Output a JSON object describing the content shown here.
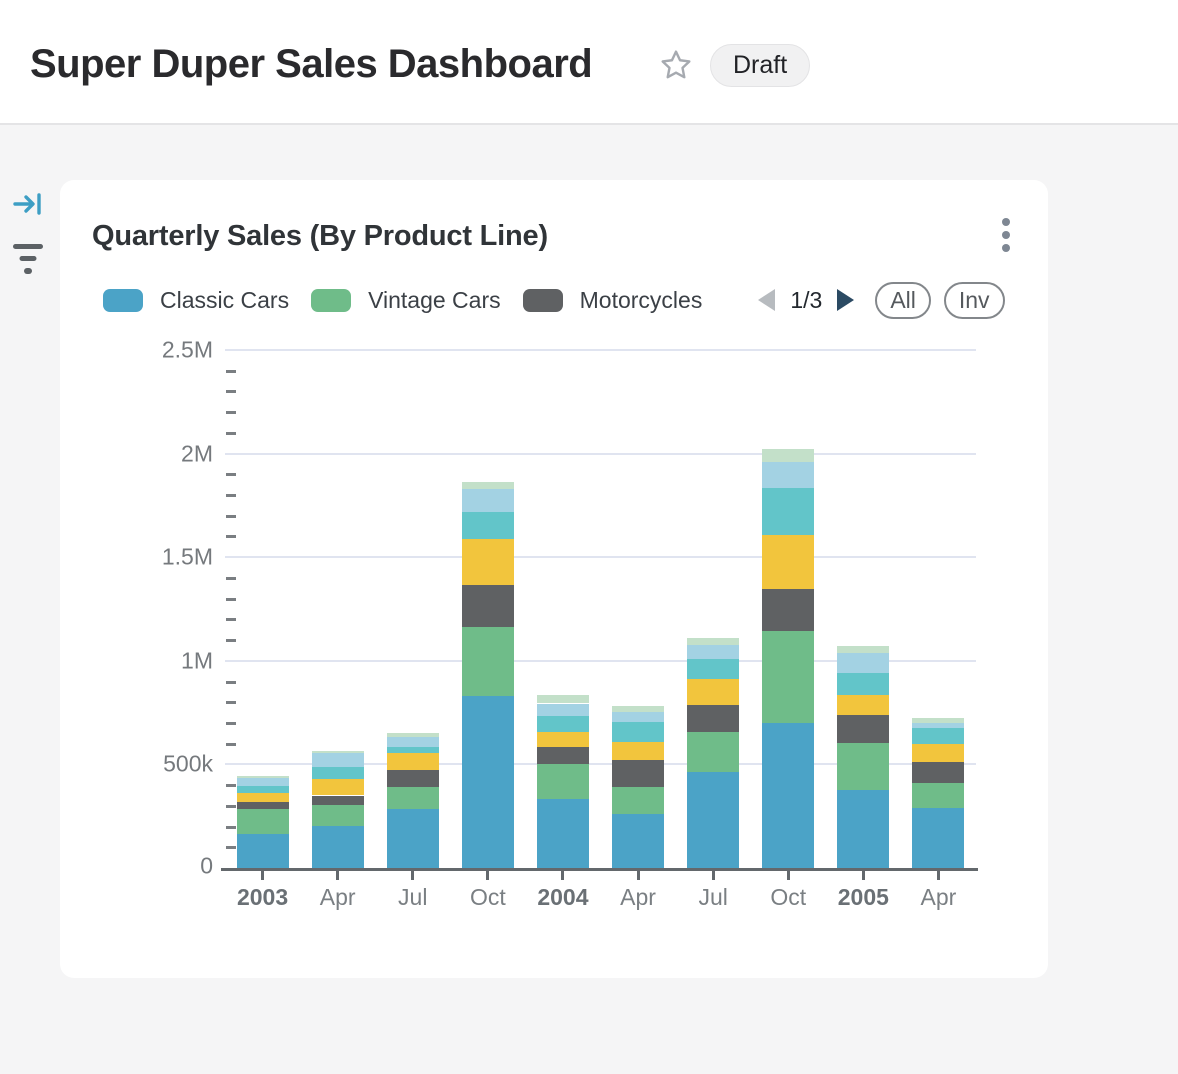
{
  "header": {
    "title": "Super Duper Sales Dashboard",
    "status_badge": "Draft",
    "favorite_icon": "star-outline"
  },
  "rail": {
    "collapse_icon": "arrow-to-bar",
    "filter_icon": "filter-lines"
  },
  "card": {
    "title": "Quarterly Sales (By Product Line)",
    "menu_icon": "kebab-vertical",
    "legend": {
      "pagination": {
        "prev_icon": "triangle-left",
        "label": "1/3",
        "next_icon": "triangle-right"
      },
      "all_label": "All",
      "inv_label": "Inv"
    }
  },
  "chart_data": {
    "type": "bar",
    "stacked": true,
    "title": "Quarterly Sales (By Product Line)",
    "categories": [
      "2003",
      "Apr",
      "Jul",
      "Oct",
      "2004",
      "Apr",
      "Jul",
      "Oct",
      "2005",
      "Apr"
    ],
    "bold_categories": [
      "2003",
      "2004",
      "2005"
    ],
    "values_unit": "thousands",
    "ylim": [
      0,
      2500
    ],
    "y_major_step": 500,
    "y_minor_step": 100,
    "y_tick_labels_top_to_bottom": [
      "2.5M",
      "2M",
      "1.5M",
      "1M",
      "500k",
      "0"
    ],
    "grid": "horizontal-major-gridlines",
    "legend_position": "top",
    "legend_pages": "1/3",
    "series": [
      {
        "name": "Classic Cars",
        "color": "#4BA3C7",
        "legend_visible": true,
        "values": [
          165,
          205,
          285,
          830,
          335,
          260,
          465,
          700,
          375,
          292
        ]
      },
      {
        "name": "Vintage Cars",
        "color": "#6FBC89",
        "legend_visible": true,
        "values": [
          118,
          100,
          106,
          335,
          166,
          133,
          193,
          443,
          229,
          116
        ]
      },
      {
        "name": "Motorcycles",
        "color": "#5F6163",
        "legend_visible": true,
        "values": [
          37,
          45,
          83,
          200,
          81,
          126,
          129,
          205,
          134,
          104
        ]
      },
      {
        "name": "series-4-yellow",
        "color": "#F2C53D",
        "legend_visible": false,
        "values": [
          43,
          78,
          83,
          224,
          75,
          87,
          124,
          258,
          97,
          87
        ]
      },
      {
        "name": "series-5-teal",
        "color": "#62C5C9",
        "legend_visible": false,
        "values": [
          34,
          60,
          29,
          129,
          76,
          97,
          97,
          226,
          108,
          75
        ]
      },
      {
        "name": "series-6-light-blue",
        "color": "#A3D2E3",
        "legend_visible": false,
        "values": [
          36,
          66,
          48,
          113,
          61,
          48,
          68,
          129,
          97,
          28
        ]
      },
      {
        "name": "series-7-pale-green",
        "color": "#C3E0C9",
        "legend_visible": false,
        "values": [
          13,
          11,
          19,
          32,
          40,
          29,
          32,
          61,
          32,
          20
        ]
      }
    ]
  },
  "colors": {
    "page_bg": "#F5F5F6",
    "card_bg": "#FFFFFF",
    "grid_line": "#E0E4F0",
    "axis_line": "#63686C",
    "axis_text": "#75797D",
    "accent_blue": "#3D9EC4",
    "pager_next": "#2B4A63",
    "pager_prev_disabled": "#B7BBBF"
  }
}
